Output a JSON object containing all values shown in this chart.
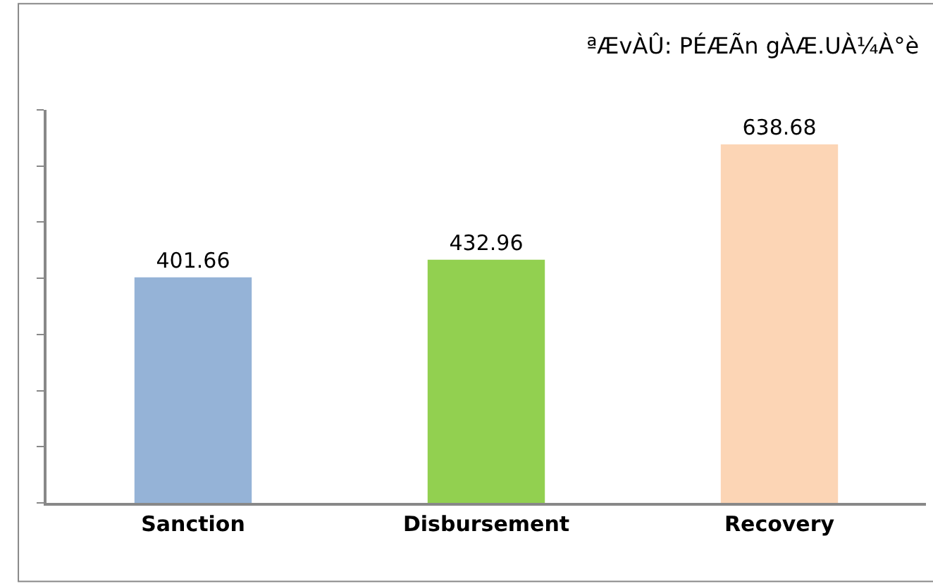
{
  "chart_data": {
    "type": "bar",
    "title": "ªÆvÀÛ: PÉÆÃn gÀÆ.UÀ¼À°è",
    "categories": [
      "Sanction",
      "Disbursement",
      "Recovery"
    ],
    "values": [
      401.66,
      432.96,
      638.68
    ],
    "colors": [
      "#95b3d7",
      "#92d050",
      "#fcd5b5"
    ],
    "ylim": [
      0,
      700
    ],
    "yticks": [
      {
        "value": 0,
        "label": null
      },
      {
        "value": 100,
        "label": null
      },
      {
        "value": 200,
        "label": null
      },
      {
        "value": 300,
        "label": null
      },
      {
        "value": 400,
        "label": null
      },
      {
        "value": 500,
        "label": null
      },
      {
        "value": 600,
        "label": null
      },
      {
        "value": 700,
        "label": null
      }
    ],
    "data_labels": true
  }
}
